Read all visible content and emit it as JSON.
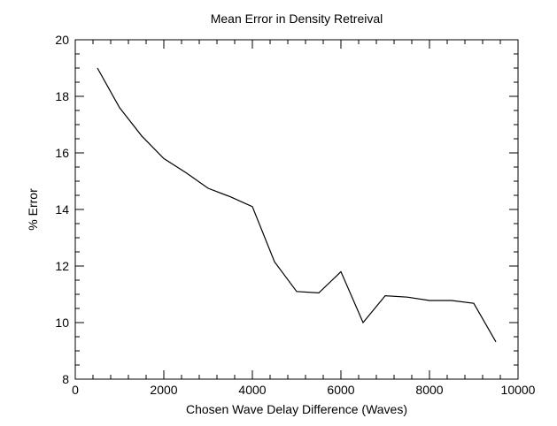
{
  "chart_data": {
    "type": "line",
    "title": "Mean Error in Density Retreival",
    "xlabel": "Chosen Wave Delay Difference (Waves)",
    "ylabel": "% Error",
    "xlim": [
      0,
      10000
    ],
    "ylim": [
      8,
      20
    ],
    "x_ticks": [
      0,
      2000,
      4000,
      6000,
      8000,
      10000
    ],
    "x_minor_step": 400,
    "y_ticks": [
      8,
      10,
      12,
      14,
      16,
      18,
      20
    ],
    "y_minor_step": 0.5,
    "grid": false,
    "series": [
      {
        "x": [
          500,
          1000,
          1500,
          2000,
          2500,
          3000,
          3500,
          4000,
          4500,
          5000,
          5500,
          6000,
          6500,
          7000,
          7500,
          8000,
          8500,
          9000,
          9500
        ],
        "y": [
          19.0,
          17.6,
          16.6,
          15.8,
          15.3,
          14.75,
          14.45,
          14.1,
          12.15,
          11.1,
          11.05,
          11.8,
          10.0,
          10.95,
          10.9,
          10.78,
          10.78,
          10.68,
          9.32
        ]
      }
    ]
  }
}
